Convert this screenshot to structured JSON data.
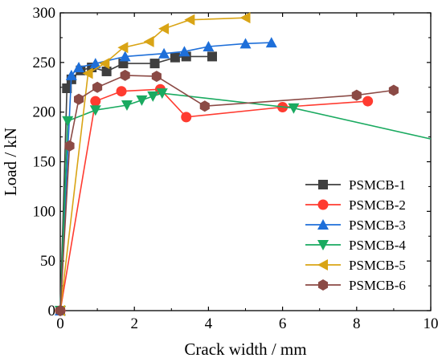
{
  "chart_data": {
    "type": "line",
    "xlabel": "Crack width / mm",
    "ylabel": "Load / kN",
    "xlim": [
      0,
      10
    ],
    "ylim": [
      0,
      300
    ],
    "xticks": [
      "0",
      "2",
      "4",
      "6",
      "8",
      "10"
    ],
    "yticks": [
      "0",
      "50",
      "100",
      "150",
      "200",
      "250",
      "300"
    ],
    "grid": false,
    "legend_position": "bottom-right",
    "series": [
      {
        "name": "PSMCB-1",
        "color": "#3f3f3f",
        "marker": "square",
        "x": [
          0,
          0.18,
          0.3,
          0.55,
          0.85,
          1.25,
          1.7,
          2.55,
          3.1,
          3.4,
          4.1
        ],
        "y": [
          0,
          224,
          233,
          242,
          245,
          241,
          249,
          249,
          255,
          256,
          256
        ]
      },
      {
        "name": "PSMCB-2",
        "color": "#ff3b30",
        "marker": "circle",
        "x": [
          0,
          0.95,
          1.65,
          2.7,
          3.4,
          6.0,
          8.3
        ],
        "y": [
          0,
          211,
          221,
          223,
          195,
          205,
          211
        ]
      },
      {
        "name": "PSMCB-3",
        "color": "#1e6fd9",
        "marker": "triangle-up",
        "x": [
          0,
          0.3,
          0.5,
          0.95,
          1.75,
          2.8,
          3.35,
          4.0,
          5.0,
          5.7
        ],
        "y": [
          0,
          237,
          245,
          249,
          256,
          259,
          261,
          266,
          269,
          270
        ]
      },
      {
        "name": "PSMCB-4",
        "color": "#1aaa60",
        "marker": "triangle-down",
        "x": [
          0,
          0.2,
          0.95,
          1.8,
          2.2,
          2.5,
          2.75,
          6.3,
          10.0
        ],
        "y": [
          0,
          191,
          202,
          207,
          212,
          216,
          219,
          204,
          173
        ]
      },
      {
        "name": "PSMCB-5",
        "color": "#d9a415",
        "marker": "triangle-left",
        "x": [
          0,
          0.75,
          1.2,
          1.7,
          2.4,
          2.8,
          3.5,
          5.0
        ],
        "y": [
          0,
          239,
          249,
          265,
          271,
          284,
          293,
          295
        ]
      },
      {
        "name": "PSMCB-6",
        "color": "#8b4a45",
        "marker": "hexagon",
        "x": [
          0,
          0.25,
          0.5,
          1.0,
          1.75,
          2.6,
          3.9,
          8.0,
          9.0
        ],
        "y": [
          0,
          166,
          213,
          225,
          237,
          236,
          206,
          217,
          222
        ]
      }
    ]
  }
}
